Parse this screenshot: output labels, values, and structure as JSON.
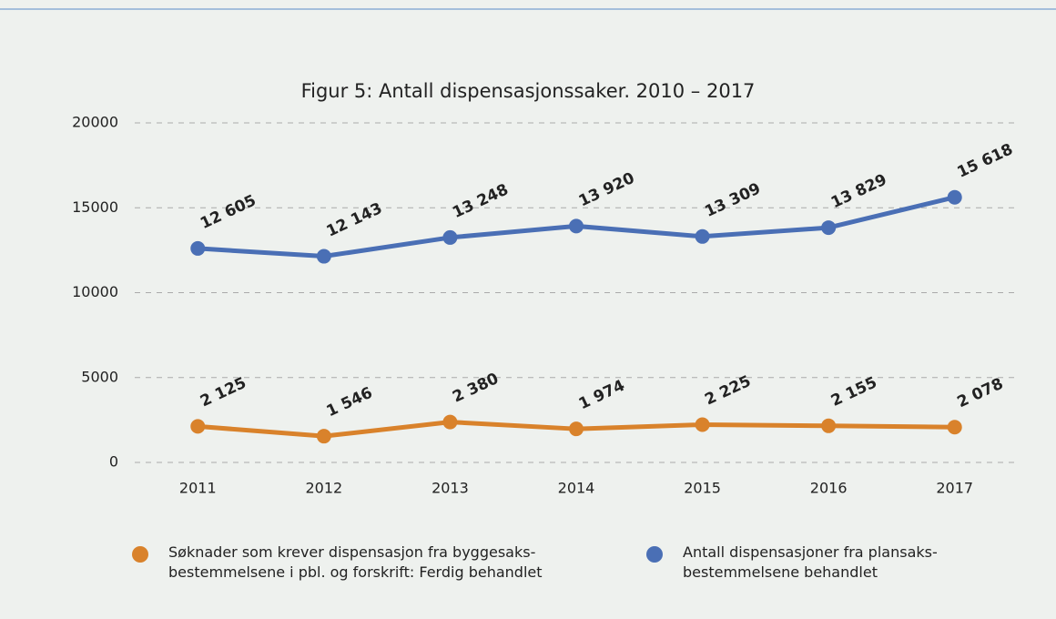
{
  "chart_data": {
    "type": "line",
    "title": "Figur 5: Antall dispensasjonssaker. 2010 – 2017",
    "categories": [
      "2011",
      "2012",
      "2013",
      "2014",
      "2015",
      "2016",
      "2017"
    ],
    "series": [
      {
        "name": "Søknader som krever dispensasjon fra byggesaks-bestemmelsene i pbl. og forskrift: Ferdig behandlet",
        "color": "#d9822b",
        "values": [
          2125,
          1546,
          2380,
          1974,
          2225,
          2155,
          2078
        ],
        "value_labels": [
          "2 125",
          "1 546",
          "2 380",
          "1 974",
          "2 225",
          "2 155",
          "2 078"
        ]
      },
      {
        "name": "Antall dispensasjoner fra plansaks-bestemmelsene behandlet",
        "color": "#4a6fb5",
        "values": [
          12605,
          12143,
          13248,
          13920,
          13309,
          13829,
          15618
        ],
        "value_labels": [
          "12 605",
          "12 143",
          "13 248",
          "13 920",
          "13 309",
          "13 829",
          "15 618"
        ]
      }
    ],
    "ylim": [
      0,
      20000
    ],
    "yticks": [
      0,
      5000,
      10000,
      15000,
      20000
    ],
    "grid": true,
    "legend": "bottom"
  }
}
